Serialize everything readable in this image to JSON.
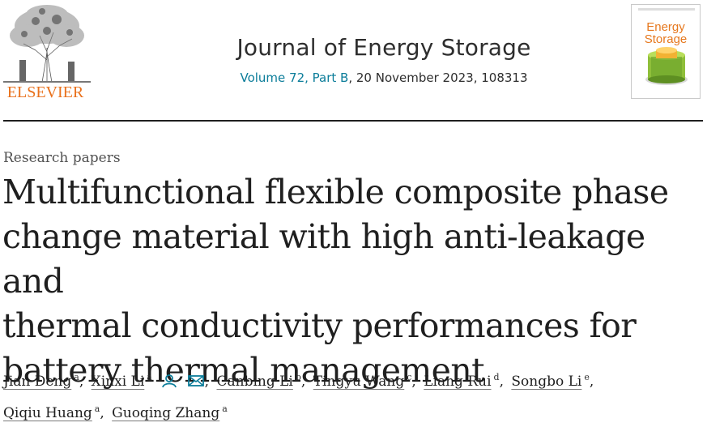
{
  "publisher": {
    "name": "ELSEVIER"
  },
  "journal": {
    "title": "Journal of Energy Storage",
    "volume_link": "Volume 72, Part B",
    "issue_rest": ", 20 November 2023, 108313"
  },
  "cover": {
    "title_line1": "Energy",
    "title_line2": "Storage"
  },
  "article": {
    "type": "Research papers",
    "title_lines": [
      "Multifunctional flexible composite phase",
      "change material with high anti-leakage and",
      "thermal conductivity performances for",
      "battery thermal management"
    ]
  },
  "authors": [
    {
      "name": "Jian Deng",
      "aff": "a"
    },
    {
      "name": "Xinxi Li",
      "aff": "a"
    },
    {
      "name": "Canbing Li",
      "aff": "b"
    },
    {
      "name": "Tingyu Wang",
      "aff": "c"
    },
    {
      "name": "Liang Rui",
      "aff": "d"
    },
    {
      "name": "Songbo Li",
      "aff": "e"
    },
    {
      "name": "Qiqiu Huang",
      "aff": "a"
    },
    {
      "name": "Guoqing Zhang",
      "aff": "a"
    }
  ],
  "icons": {
    "person": "person-icon",
    "email": "email-icon"
  },
  "colors": {
    "publisher_orange": "#e9711c",
    "link_teal": "#0c7d9a",
    "text": "#1f1f1f"
  }
}
